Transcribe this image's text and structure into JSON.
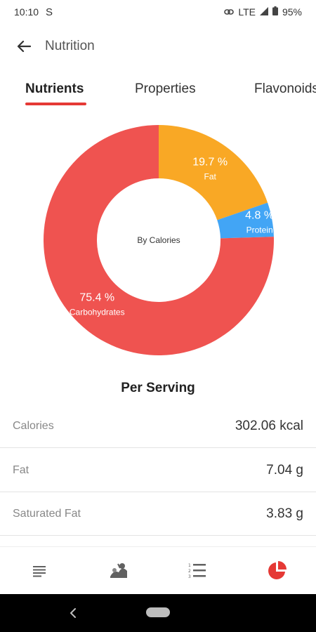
{
  "status_bar": {
    "time": "10:10",
    "app_indicator": "S",
    "network": "LTE",
    "battery": "95%"
  },
  "app_bar": {
    "title": "Nutrition"
  },
  "tabs": [
    {
      "label": "Nutrients",
      "active": true
    },
    {
      "label": "Properties",
      "active": false
    },
    {
      "label": "Flavonoids",
      "active": false
    }
  ],
  "chart_data": {
    "type": "pie",
    "center_label": "By Calories",
    "slices": [
      {
        "label": "Fat",
        "percent_label": "19.7 %",
        "value": 19.7,
        "color": "#F9A825"
      },
      {
        "label": "Protein",
        "percent_label": "4.8 %",
        "value": 4.8,
        "color": "#42A5F5"
      },
      {
        "label": "Carbohydrates",
        "percent_label": "75.4 %",
        "value": 75.4,
        "color": "#EF5350"
      }
    ]
  },
  "per_serving": {
    "title": "Per Serving",
    "rows": [
      {
        "name": "Calories",
        "value": "302.06 kcal"
      },
      {
        "name": "Fat",
        "value": "7.04 g"
      },
      {
        "name": "Saturated Fat",
        "value": "3.83 g"
      }
    ]
  },
  "colors": {
    "accent": "#E53935",
    "fat": "#F9A825",
    "protein": "#42A5F5",
    "carbohydrates": "#EF5350"
  },
  "bottom_nav": [
    {
      "icon": "list-icon",
      "active": false
    },
    {
      "icon": "ingredients-icon",
      "active": false
    },
    {
      "icon": "numbered-list-icon",
      "active": false
    },
    {
      "icon": "pie-chart-icon",
      "active": true
    }
  ]
}
